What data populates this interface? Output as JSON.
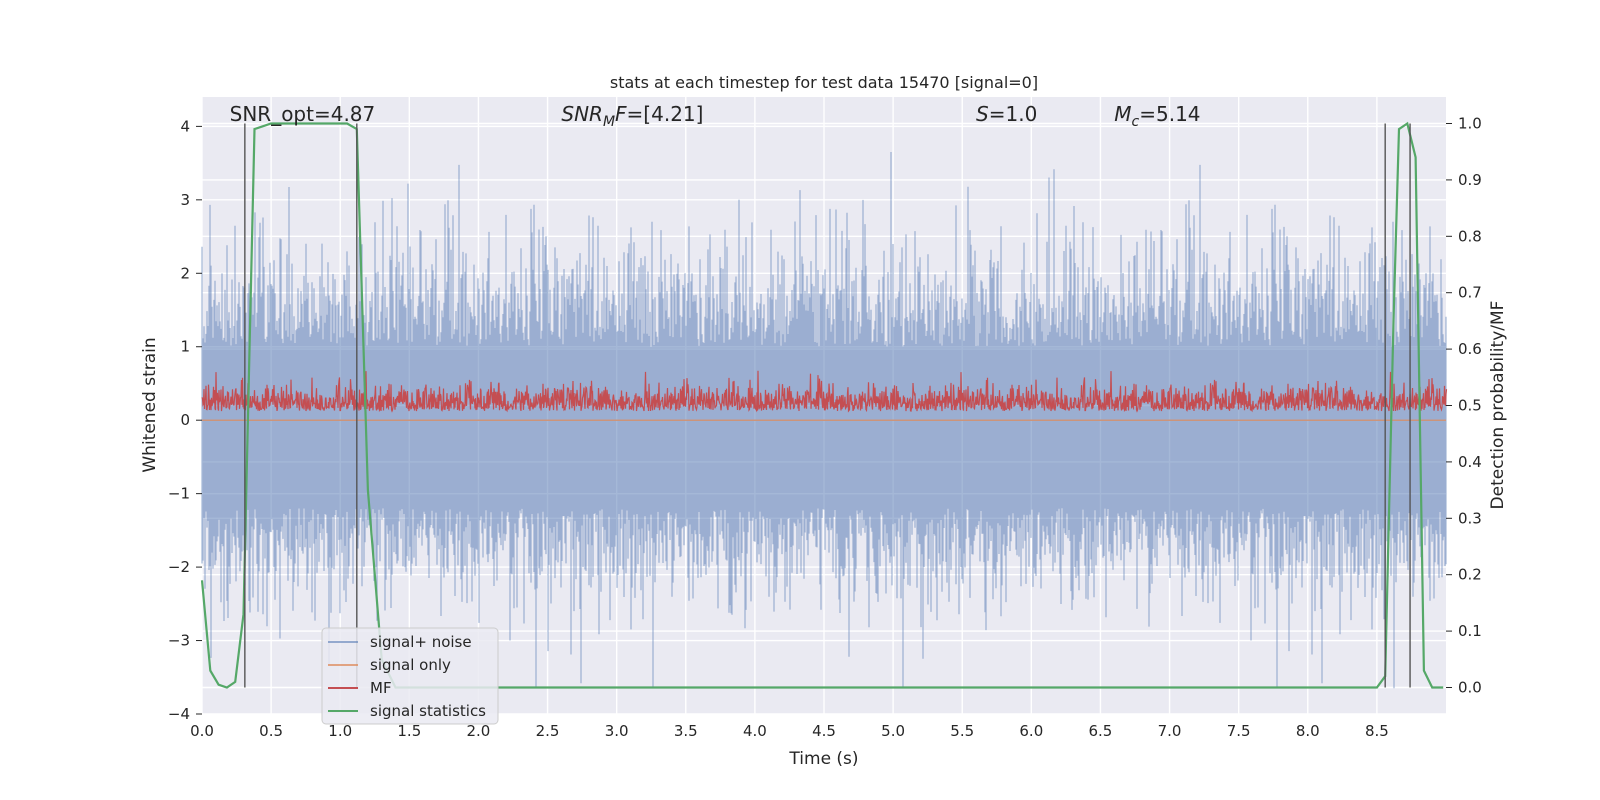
{
  "chart_data": {
    "type": "line",
    "title": "stats at each timestep for test data 15470 [signal=0]",
    "xlabel": "Time (s)",
    "ylabel": "Whitened strain",
    "y2label": "Detection probability/MF",
    "xlim": [
      0,
      9.0
    ],
    "ylim": [
      -4.0,
      4.4
    ],
    "y2lim": [
      -0.047,
      1.047
    ],
    "grid": true,
    "legend_position": "lower-left",
    "x_ticks": [
      "0.0",
      "0.5",
      "1.0",
      "1.5",
      "2.0",
      "2.5",
      "3.0",
      "3.5",
      "4.0",
      "4.5",
      "5.0",
      "5.5",
      "6.0",
      "6.5",
      "7.0",
      "7.5",
      "8.0",
      "8.5"
    ],
    "y_ticks": [
      "−4",
      "−3",
      "−2",
      "−1",
      "0",
      "1",
      "2",
      "3",
      "4"
    ],
    "y2_ticks": [
      "0.0",
      "0.1",
      "0.2",
      "0.3",
      "0.4",
      "0.5",
      "0.6",
      "0.7",
      "0.8",
      "0.9",
      "1.0"
    ],
    "annotations": [
      {
        "label": "SNR_opt=4.87",
        "x": 0.2
      },
      {
        "label": "SNRMF=[4.21]",
        "x": 2.6
      },
      {
        "label": "S=1.0",
        "x": 5.6
      },
      {
        "label": "Mc=5.14",
        "x": 6.6
      }
    ],
    "series": [
      {
        "name": "signal+ noise",
        "color": "#4c72b0",
        "axis": "left",
        "x_range": [
          0.0,
          9.0
        ],
        "y_range": [
          -3.65,
          4.0
        ],
        "note_values": "dense whitened noise centered at ~ -0.1"
      },
      {
        "name": "signal only",
        "color": "#dd8452",
        "axis": "left",
        "x": [
          0.0,
          9.0
        ],
        "y": [
          0.0,
          0.0
        ]
      },
      {
        "name": "MF",
        "color": "#c44e52",
        "axis": "right",
        "x_range": [
          0.0,
          9.0
        ],
        "y_range": [
          0.49,
          0.61
        ]
      },
      {
        "name": "signal statistics",
        "color": "#55a868",
        "axis": "right",
        "x": [
          0.0,
          0.06,
          0.12,
          0.18,
          0.24,
          0.3,
          0.38,
          0.5,
          0.7,
          0.9,
          1.05,
          1.12,
          1.2,
          1.3,
          1.4,
          1.6,
          2.0,
          3.0,
          4.0,
          5.0,
          6.0,
          7.0,
          8.0,
          8.5,
          8.56,
          8.62,
          8.66,
          8.72,
          8.78,
          8.84,
          8.9,
          8.98
        ],
        "y": [
          0.19,
          0.03,
          0.005,
          0.0,
          0.01,
          0.13,
          0.99,
          1.0,
          1.0,
          1.0,
          1.0,
          0.99,
          0.35,
          0.05,
          0.0,
          0.0,
          0.0,
          0.0,
          0.0,
          0.0,
          0.0,
          0.0,
          0.0,
          0.0,
          0.02,
          0.65,
          0.99,
          1.0,
          0.94,
          0.03,
          0.0,
          0.0
        ]
      }
    ],
    "vertical_lines": [
      {
        "x": 0.31,
        "y": [
          0.0,
          1.0
        ]
      },
      {
        "x": 1.12,
        "y": [
          0.0,
          1.0
        ]
      },
      {
        "x": 8.56,
        "y": [
          0.0,
          1.0
        ]
      },
      {
        "x": 8.74,
        "y": [
          0.0,
          1.0
        ]
      }
    ]
  }
}
